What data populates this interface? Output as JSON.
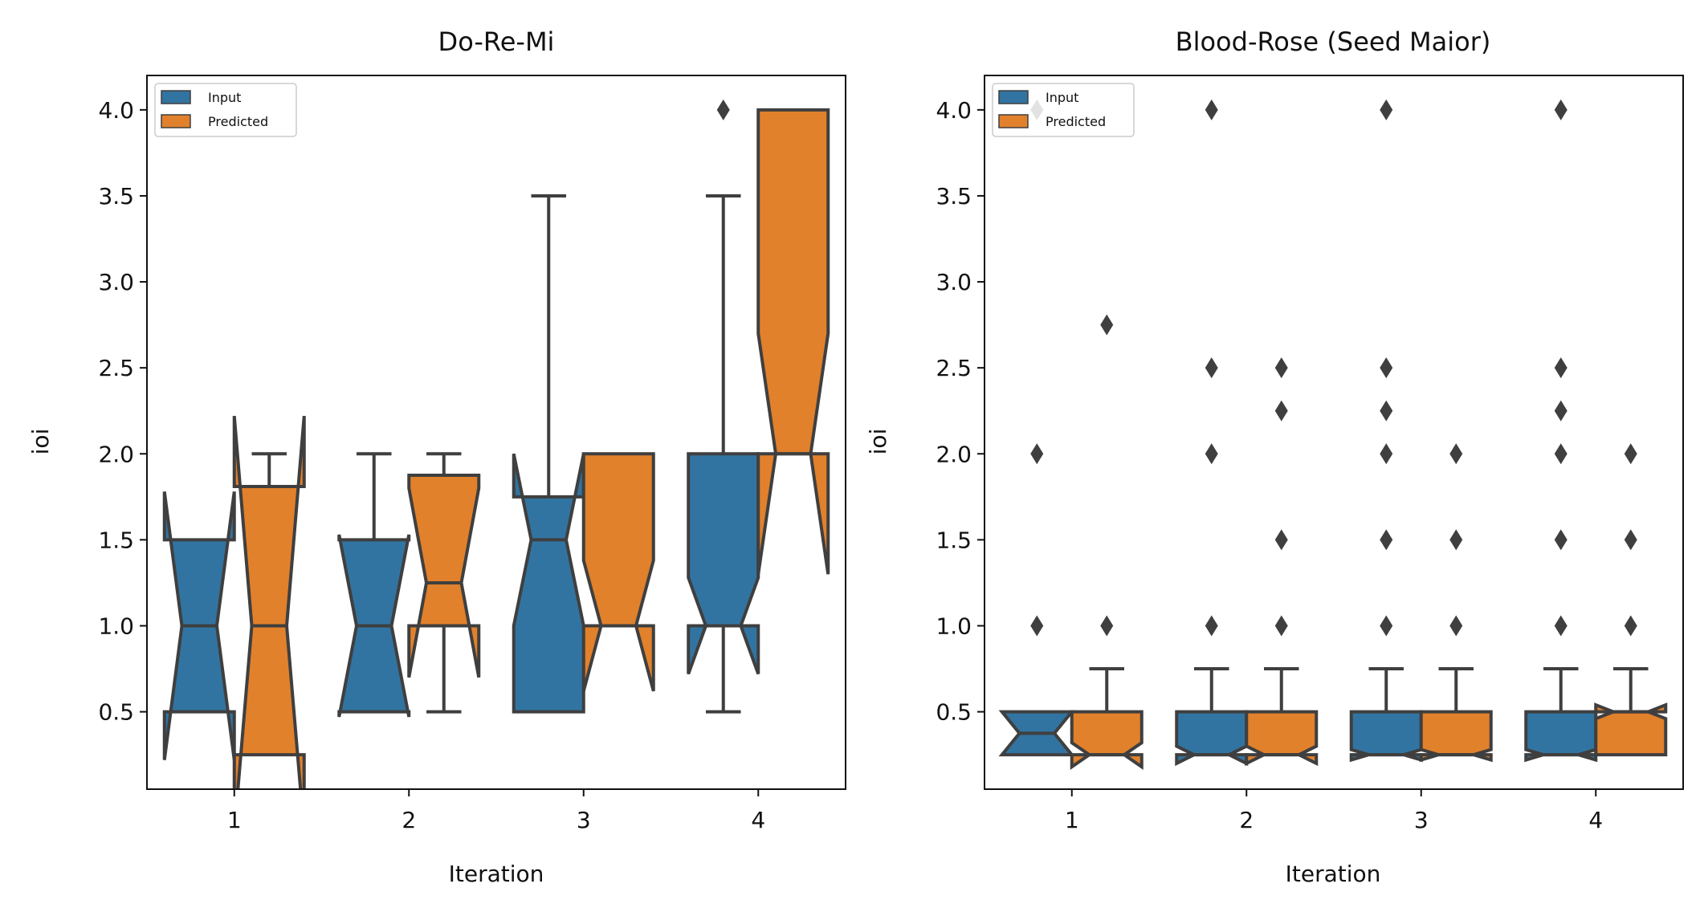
{
  "colors": {
    "input": "#3274a1",
    "predicted": "#e1812c",
    "edge": "#3f3f3f"
  },
  "chart_data": [
    {
      "type": "boxplot",
      "notched": true,
      "title": "Do-Re-Mi",
      "xlabel": "Iteration",
      "ylabel": "ioi",
      "categories": [
        "1",
        "2",
        "3",
        "4"
      ],
      "ylim": [
        0.05,
        4.2
      ],
      "yticks": [
        "0.5",
        "1.0",
        "1.5",
        "2.0",
        "2.5",
        "3.0",
        "3.5",
        "4.0"
      ],
      "legend": {
        "position": "top-left",
        "entries": [
          "Input",
          "Predicted"
        ]
      },
      "series": [
        {
          "name": "Input",
          "boxes": [
            {
              "q1": 0.5,
              "median": 1.0,
              "q3": 1.5,
              "notch": [
                0.22,
                1.78
              ],
              "whisker_low": 0.5,
              "whisker_high": 1.5,
              "outliers": []
            },
            {
              "q1": 0.5,
              "median": 1.0,
              "q3": 1.5,
              "notch": [
                0.47,
                1.53
              ],
              "whisker_low": 0.5,
              "whisker_high": 2.0,
              "outliers": []
            },
            {
              "q1": 0.5,
              "median": 1.5,
              "q3": 1.75,
              "notch": [
                1.0,
                2.0
              ],
              "whisker_low": 0.5,
              "whisker_high": 3.5,
              "outliers": []
            },
            {
              "q1": 1.0,
              "median": 1.0,
              "q3": 2.0,
              "notch": [
                0.72,
                1.28
              ],
              "whisker_low": 0.5,
              "whisker_high": 3.5,
              "outliers": [
                4.0
              ]
            }
          ]
        },
        {
          "name": "Predicted",
          "boxes": [
            {
              "q1": 0.25,
              "median": 1.0,
              "q3": 1.81,
              "notch": [
                -0.2,
                2.22
              ],
              "whisker_low": 0.25,
              "whisker_high": 2.0,
              "outliers": []
            },
            {
              "q1": 1.0,
              "median": 1.25,
              "q3": 1.875,
              "notch": [
                0.7,
                1.8
              ],
              "whisker_low": 0.5,
              "whisker_high": 2.0,
              "outliers": []
            },
            {
              "q1": 1.0,
              "median": 1.0,
              "q3": 2.0,
              "notch": [
                0.62,
                1.38
              ],
              "whisker_low": 1.0,
              "whisker_high": 2.0,
              "outliers": []
            },
            {
              "q1": 2.0,
              "median": 2.0,
              "q3": 4.0,
              "notch": [
                1.3,
                2.7
              ],
              "whisker_low": 2.0,
              "whisker_high": 4.0,
              "outliers": []
            }
          ]
        }
      ]
    },
    {
      "type": "boxplot",
      "notched": true,
      "title": "Blood-Rose (Seed Maior)",
      "xlabel": "Iteration",
      "ylabel": "ioi",
      "categories": [
        "1",
        "2",
        "3",
        "4"
      ],
      "ylim": [
        0.05,
        4.2
      ],
      "yticks": [
        "0.5",
        "1.0",
        "1.5",
        "2.0",
        "2.5",
        "3.0",
        "3.5",
        "4.0"
      ],
      "legend": {
        "position": "top-left",
        "entries": [
          "Input",
          "Predicted"
        ]
      },
      "series": [
        {
          "name": "Input",
          "boxes": [
            {
              "q1": 0.25,
              "median": 0.375,
              "q3": 0.5,
              "notch": [
                0.25,
                0.5
              ],
              "whisker_low": 0.25,
              "whisker_high": 0.5,
              "outliers": [
                1.0,
                2.0,
                4.0
              ]
            },
            {
              "q1": 0.25,
              "median": 0.25,
              "q3": 0.5,
              "notch": [
                0.2,
                0.3
              ],
              "whisker_low": 0.25,
              "whisker_high": 0.75,
              "outliers": [
                1.0,
                2.0,
                2.5,
                4.0
              ]
            },
            {
              "q1": 0.25,
              "median": 0.25,
              "q3": 0.5,
              "notch": [
                0.22,
                0.28
              ],
              "whisker_low": 0.25,
              "whisker_high": 0.75,
              "outliers": [
                1.0,
                1.5,
                2.0,
                2.25,
                2.5,
                4.0
              ]
            },
            {
              "q1": 0.25,
              "median": 0.25,
              "q3": 0.5,
              "notch": [
                0.22,
                0.28
              ],
              "whisker_low": 0.25,
              "whisker_high": 0.75,
              "outliers": [
                1.0,
                1.5,
                2.0,
                2.25,
                2.5,
                4.0
              ]
            }
          ]
        },
        {
          "name": "Predicted",
          "boxes": [
            {
              "q1": 0.25,
              "median": 0.25,
              "q3": 0.5,
              "notch": [
                0.18,
                0.32
              ],
              "whisker_low": 0.25,
              "whisker_high": 0.75,
              "outliers": [
                1.0,
                2.75
              ]
            },
            {
              "q1": 0.25,
              "median": 0.25,
              "q3": 0.5,
              "notch": [
                0.2,
                0.3
              ],
              "whisker_low": 0.25,
              "whisker_high": 0.75,
              "outliers": [
                1.0,
                1.5,
                2.25,
                2.5
              ]
            },
            {
              "q1": 0.25,
              "median": 0.25,
              "q3": 0.5,
              "notch": [
                0.22,
                0.28
              ],
              "whisker_low": 0.25,
              "whisker_high": 0.75,
              "outliers": [
                1.0,
                1.5,
                2.0
              ]
            },
            {
              "q1": 0.25,
              "median": 0.5,
              "q3": 0.5,
              "notch": [
                0.46,
                0.54
              ],
              "whisker_low": 0.25,
              "whisker_high": 0.75,
              "outliers": [
                1.0,
                1.5,
                2.0
              ]
            }
          ]
        }
      ]
    }
  ]
}
